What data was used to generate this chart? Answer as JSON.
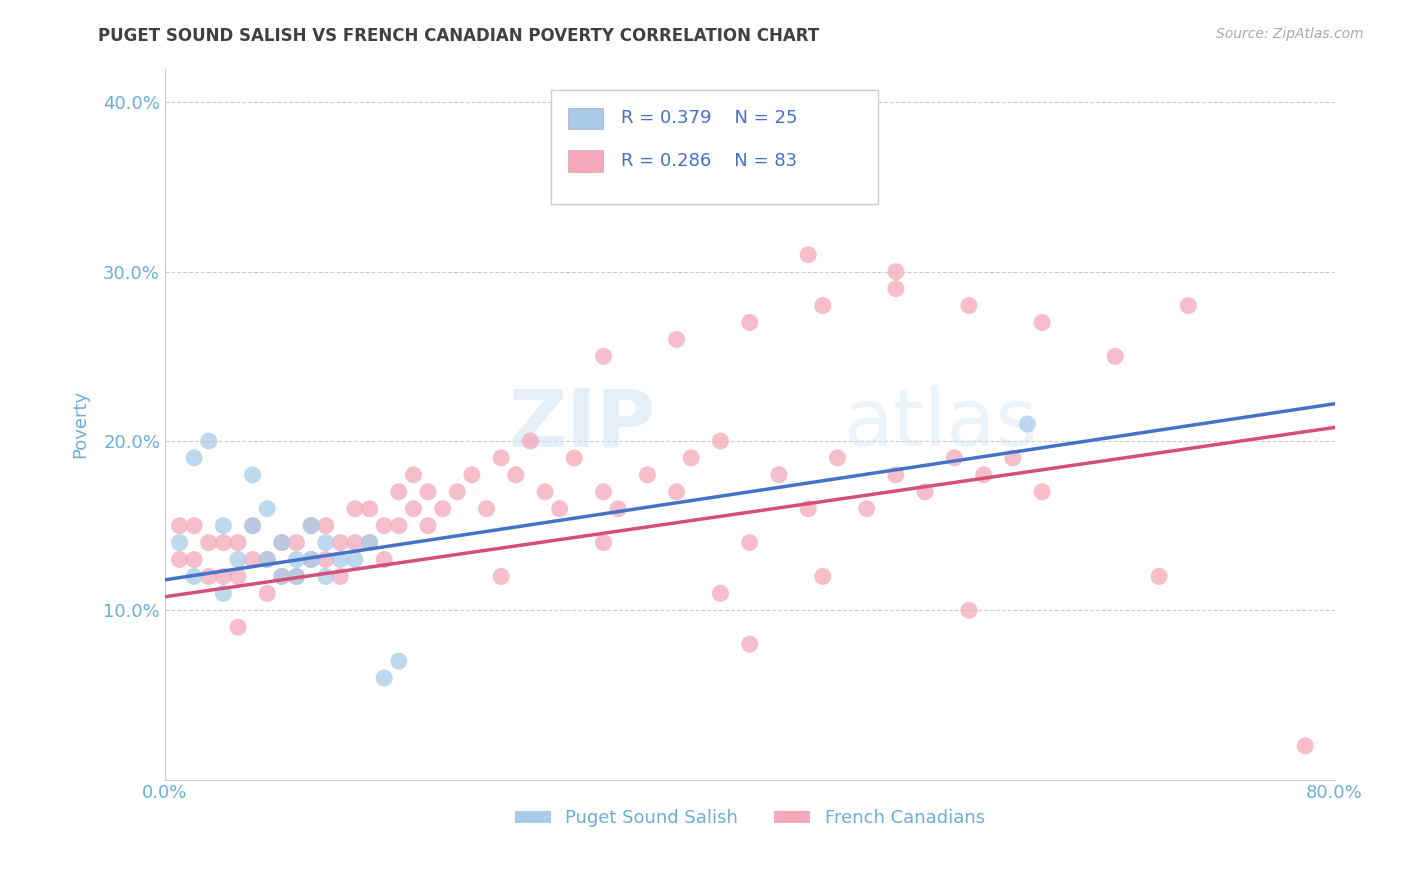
{
  "title": "PUGET SOUND SALISH VS FRENCH CANADIAN POVERTY CORRELATION CHART",
  "source": "Source: ZipAtlas.com",
  "ylabel": "Poverty",
  "xlim": [
    0.0,
    0.8
  ],
  "ylim": [
    0.0,
    0.42
  ],
  "xticks": [
    0.0,
    0.1,
    0.2,
    0.3,
    0.4,
    0.5,
    0.6,
    0.7,
    0.8
  ],
  "xticklabels": [
    "0.0%",
    "",
    "",
    "",
    "",
    "",
    "",
    "",
    "80.0%"
  ],
  "yticks": [
    0.0,
    0.1,
    0.2,
    0.3,
    0.4
  ],
  "yticklabels": [
    "",
    "10.0%",
    "20.0%",
    "30.0%",
    "40.0%"
  ],
  "legend_r1": "R = 0.379",
  "legend_n1": "N = 25",
  "legend_r2": "R = 0.286",
  "legend_n2": "N = 83",
  "color_blue": "#a8cce8",
  "color_pink": "#f4a8bc",
  "color_blue_line": "#4472c4",
  "color_pink_line": "#d44f7a",
  "legend_label1": "Puget Sound Salish",
  "legend_label2": "French Canadians",
  "watermark_zip": "ZIP",
  "watermark_atlas": "atlas",
  "grid_color": "#cccccc",
  "background_color": "#ffffff",
  "title_color": "#404040",
  "axis_label_color": "#6baed6",
  "tick_label_color": "#6baed6",
  "blue_line_x0": 0.0,
  "blue_line_y0": 0.118,
  "blue_line_x1": 0.8,
  "blue_line_y1": 0.222,
  "pink_line_x0": 0.0,
  "pink_line_y0": 0.108,
  "pink_line_x1": 0.8,
  "pink_line_y1": 0.208,
  "blue_scatter_x": [
    0.01,
    0.02,
    0.02,
    0.03,
    0.04,
    0.04,
    0.05,
    0.06,
    0.06,
    0.07,
    0.07,
    0.08,
    0.08,
    0.09,
    0.09,
    0.1,
    0.1,
    0.11,
    0.11,
    0.12,
    0.13,
    0.14,
    0.15,
    0.16,
    0.59
  ],
  "blue_scatter_y": [
    0.14,
    0.19,
    0.12,
    0.2,
    0.15,
    0.11,
    0.13,
    0.18,
    0.15,
    0.13,
    0.16,
    0.14,
    0.12,
    0.13,
    0.12,
    0.15,
    0.13,
    0.14,
    0.12,
    0.13,
    0.13,
    0.14,
    0.06,
    0.07,
    0.21
  ],
  "pink_scatter_x": [
    0.01,
    0.01,
    0.02,
    0.02,
    0.03,
    0.03,
    0.04,
    0.04,
    0.05,
    0.05,
    0.06,
    0.06,
    0.07,
    0.07,
    0.08,
    0.08,
    0.09,
    0.09,
    0.1,
    0.1,
    0.11,
    0.11,
    0.12,
    0.12,
    0.13,
    0.13,
    0.14,
    0.14,
    0.15,
    0.15,
    0.16,
    0.16,
    0.17,
    0.17,
    0.18,
    0.18,
    0.19,
    0.2,
    0.21,
    0.22,
    0.23,
    0.24,
    0.25,
    0.26,
    0.27,
    0.28,
    0.3,
    0.3,
    0.31,
    0.33,
    0.35,
    0.36,
    0.38,
    0.4,
    0.42,
    0.44,
    0.46,
    0.48,
    0.5,
    0.52,
    0.54,
    0.56,
    0.58,
    0.6,
    0.35,
    0.4,
    0.45,
    0.5,
    0.55,
    0.6,
    0.65,
    0.7,
    0.44,
    0.5,
    0.23,
    0.3,
    0.38,
    0.45,
    0.55,
    0.68,
    0.4,
    0.78,
    0.05
  ],
  "pink_scatter_y": [
    0.15,
    0.13,
    0.15,
    0.13,
    0.14,
    0.12,
    0.14,
    0.12,
    0.14,
    0.12,
    0.13,
    0.15,
    0.13,
    0.11,
    0.14,
    0.12,
    0.14,
    0.12,
    0.13,
    0.15,
    0.13,
    0.15,
    0.14,
    0.12,
    0.14,
    0.16,
    0.14,
    0.16,
    0.15,
    0.13,
    0.15,
    0.17,
    0.16,
    0.18,
    0.15,
    0.17,
    0.16,
    0.17,
    0.18,
    0.16,
    0.19,
    0.18,
    0.2,
    0.17,
    0.16,
    0.19,
    0.17,
    0.25,
    0.16,
    0.18,
    0.17,
    0.19,
    0.2,
    0.14,
    0.18,
    0.16,
    0.19,
    0.16,
    0.18,
    0.17,
    0.19,
    0.18,
    0.19,
    0.17,
    0.26,
    0.27,
    0.28,
    0.29,
    0.28,
    0.27,
    0.25,
    0.28,
    0.31,
    0.3,
    0.12,
    0.14,
    0.11,
    0.12,
    0.1,
    0.12,
    0.08,
    0.02,
    0.09
  ]
}
